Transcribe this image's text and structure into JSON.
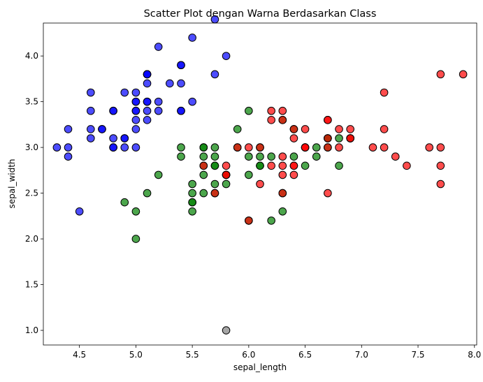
{
  "chart_data": {
    "type": "scatter",
    "title": "Scatter Plot dengan Warna Berdasarkan Class",
    "xlabel": "sepal_length",
    "ylabel": "sepal_width",
    "xlim": [
      4.18,
      8.02
    ],
    "ylim": [
      0.84,
      4.36
    ],
    "xticks": [
      4.5,
      5.0,
      5.5,
      6.0,
      6.5,
      7.0,
      7.5,
      8.0
    ],
    "yticks": [
      1.0,
      1.5,
      2.0,
      2.5,
      3.0,
      3.5,
      4.0
    ],
    "grid": false,
    "legend": "none",
    "series": [
      {
        "color": "#0000ff",
        "points": [
          [
            5.1,
            3.5
          ],
          [
            4.9,
            3.0
          ],
          [
            4.7,
            3.2
          ],
          [
            4.6,
            3.1
          ],
          [
            5.0,
            3.6
          ],
          [
            5.4,
            3.9
          ],
          [
            4.6,
            3.4
          ],
          [
            5.0,
            3.4
          ],
          [
            4.4,
            2.9
          ],
          [
            4.9,
            3.1
          ],
          [
            5.4,
            3.7
          ],
          [
            4.8,
            3.4
          ],
          [
            4.8,
            3.0
          ],
          [
            4.3,
            3.0
          ],
          [
            5.8,
            4.0
          ],
          [
            5.7,
            4.4
          ],
          [
            5.4,
            3.9
          ],
          [
            5.1,
            3.5
          ],
          [
            5.7,
            3.8
          ],
          [
            5.1,
            3.8
          ],
          [
            5.4,
            3.4
          ],
          [
            5.1,
            3.7
          ],
          [
            4.6,
            3.6
          ],
          [
            5.1,
            3.3
          ],
          [
            4.8,
            3.4
          ],
          [
            5.0,
            3.0
          ],
          [
            5.0,
            3.4
          ],
          [
            5.2,
            3.5
          ],
          [
            5.2,
            3.4
          ],
          [
            4.7,
            3.2
          ],
          [
            4.8,
            3.1
          ],
          [
            5.4,
            3.4
          ],
          [
            5.2,
            4.1
          ],
          [
            5.5,
            4.2
          ],
          [
            4.9,
            3.1
          ],
          [
            5.0,
            3.2
          ],
          [
            5.5,
            3.5
          ],
          [
            4.9,
            3.6
          ],
          [
            4.4,
            3.0
          ],
          [
            5.1,
            3.4
          ],
          [
            5.0,
            3.5
          ],
          [
            4.5,
            2.3
          ],
          [
            4.4,
            3.2
          ],
          [
            5.0,
            3.5
          ],
          [
            5.1,
            3.8
          ],
          [
            4.8,
            3.0
          ],
          [
            5.1,
            3.8
          ],
          [
            4.6,
            3.2
          ],
          [
            5.3,
            3.7
          ],
          [
            5.0,
            3.3
          ]
        ]
      },
      {
        "color": "#008000",
        "points": [
          [
            6.4,
            3.2
          ],
          [
            6.9,
            3.1
          ],
          [
            5.5,
            2.3
          ],
          [
            6.5,
            2.8
          ],
          [
            5.7,
            2.8
          ],
          [
            6.3,
            3.3
          ],
          [
            4.9,
            2.4
          ],
          [
            6.6,
            2.9
          ],
          [
            5.2,
            2.7
          ],
          [
            5.0,
            2.0
          ],
          [
            5.9,
            3.0
          ],
          [
            6.0,
            2.2
          ],
          [
            6.1,
            2.9
          ],
          [
            5.6,
            2.9
          ],
          [
            6.7,
            3.1
          ],
          [
            5.6,
            3.0
          ],
          [
            5.8,
            2.7
          ],
          [
            6.2,
            2.2
          ],
          [
            5.6,
            2.5
          ],
          [
            5.9,
            3.2
          ],
          [
            6.1,
            2.8
          ],
          [
            6.3,
            2.5
          ],
          [
            6.1,
            2.8
          ],
          [
            6.4,
            2.9
          ],
          [
            6.6,
            3.0
          ],
          [
            6.8,
            2.8
          ],
          [
            6.7,
            3.0
          ],
          [
            6.0,
            2.9
          ],
          [
            5.7,
            2.6
          ],
          [
            5.5,
            2.4
          ],
          [
            5.5,
            2.4
          ],
          [
            5.8,
            2.7
          ],
          [
            6.0,
            2.7
          ],
          [
            5.4,
            3.0
          ],
          [
            6.0,
            3.4
          ],
          [
            6.7,
            3.1
          ],
          [
            6.3,
            2.3
          ],
          [
            5.6,
            3.0
          ],
          [
            5.5,
            2.5
          ],
          [
            5.5,
            2.6
          ],
          [
            6.1,
            3.0
          ],
          [
            5.8,
            2.6
          ],
          [
            5.0,
            2.3
          ],
          [
            5.6,
            2.7
          ],
          [
            5.7,
            3.0
          ],
          [
            5.7,
            2.9
          ],
          [
            6.2,
            2.9
          ],
          [
            5.1,
            2.5
          ],
          [
            5.7,
            2.8
          ],
          [
            5.4,
            2.9
          ],
          [
            5.6,
            2.8
          ],
          [
            5.7,
            2.5
          ],
          [
            6.8,
            3.1
          ]
        ]
      },
      {
        "color": "#ff0000",
        "points": [
          [
            6.3,
            3.3
          ],
          [
            5.8,
            2.7
          ],
          [
            7.1,
            3.0
          ],
          [
            6.3,
            2.9
          ],
          [
            6.5,
            3.0
          ],
          [
            7.6,
            3.0
          ],
          [
            7.3,
            2.9
          ],
          [
            6.7,
            2.5
          ],
          [
            7.2,
            3.6
          ],
          [
            6.5,
            3.2
          ],
          [
            6.4,
            2.7
          ],
          [
            6.8,
            3.0
          ],
          [
            5.7,
            2.5
          ],
          [
            5.8,
            2.8
          ],
          [
            6.4,
            3.2
          ],
          [
            6.5,
            3.0
          ],
          [
            7.7,
            3.8
          ],
          [
            7.7,
            2.6
          ],
          [
            6.0,
            2.2
          ],
          [
            6.9,
            3.2
          ],
          [
            5.6,
            2.8
          ],
          [
            7.7,
            2.8
          ],
          [
            6.3,
            2.7
          ],
          [
            6.7,
            3.3
          ],
          [
            7.2,
            3.2
          ],
          [
            6.2,
            2.8
          ],
          [
            6.1,
            3.0
          ],
          [
            6.4,
            2.8
          ],
          [
            7.2,
            3.0
          ],
          [
            7.4,
            2.8
          ],
          [
            7.9,
            3.8
          ],
          [
            6.4,
            2.8
          ],
          [
            6.3,
            2.8
          ],
          [
            6.1,
            2.6
          ],
          [
            7.7,
            3.0
          ],
          [
            6.3,
            3.4
          ],
          [
            6.4,
            3.1
          ],
          [
            6.0,
            3.0
          ],
          [
            6.9,
            3.1
          ],
          [
            6.7,
            3.1
          ],
          [
            6.9,
            3.1
          ],
          [
            5.8,
            2.7
          ],
          [
            6.8,
            3.2
          ],
          [
            6.7,
            3.3
          ],
          [
            6.7,
            3.0
          ],
          [
            6.3,
            2.5
          ],
          [
            6.5,
            3.0
          ],
          [
            6.2,
            3.4
          ],
          [
            5.9,
            3.0
          ],
          [
            6.2,
            3.3
          ]
        ]
      },
      {
        "color": "#808080",
        "points": [
          [
            5.8,
            1.0
          ]
        ]
      }
    ]
  }
}
